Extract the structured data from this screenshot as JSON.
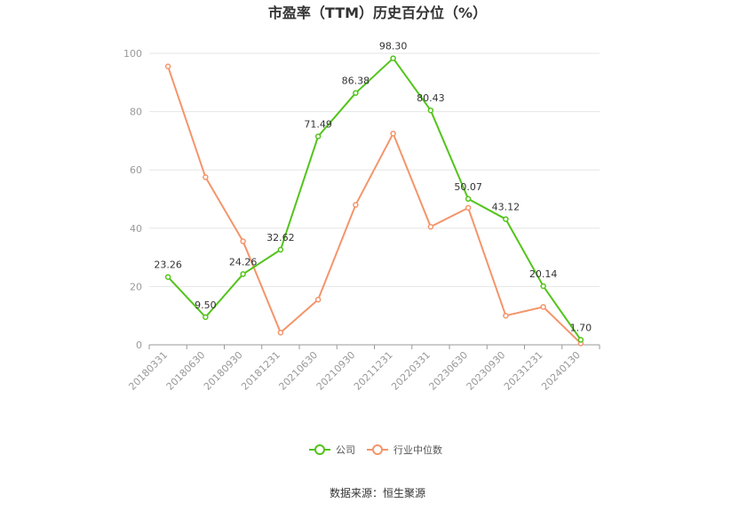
{
  "chart_data": {
    "type": "line",
    "title": "市盈率（TTM）历史百分位（%）",
    "categories": [
      "20180331",
      "20180630",
      "20180930",
      "20181231",
      "20210630",
      "20210930",
      "20211231",
      "20220331",
      "20230630",
      "20230930",
      "20231231",
      "20240130"
    ],
    "series": [
      {
        "name": "公司",
        "color": "#52c41a",
        "values": [
          23.26,
          9.5,
          24.26,
          32.62,
          71.49,
          86.38,
          98.3,
          80.43,
          50.07,
          43.12,
          20.14,
          1.7
        ],
        "labels": [
          "23.26",
          "9.50",
          "24.26",
          "32.62",
          "71.49",
          "86.38",
          "98.30",
          "80.43",
          "50.07",
          "43.12",
          "20.14",
          "1.70"
        ]
      },
      {
        "name": "行业中位数",
        "color": "#f4956b",
        "values": [
          95.5,
          57.5,
          35.5,
          4.2,
          15.5,
          48.0,
          72.5,
          40.5,
          47.0,
          10.0,
          13.0,
          0.5
        ]
      }
    ],
    "ylim": [
      0,
      100
    ],
    "yticks": [
      0,
      20,
      40,
      60,
      80,
      100
    ],
    "grid": true,
    "legend_position": "bottom-center"
  },
  "source_text": "数据来源：恒生聚源"
}
